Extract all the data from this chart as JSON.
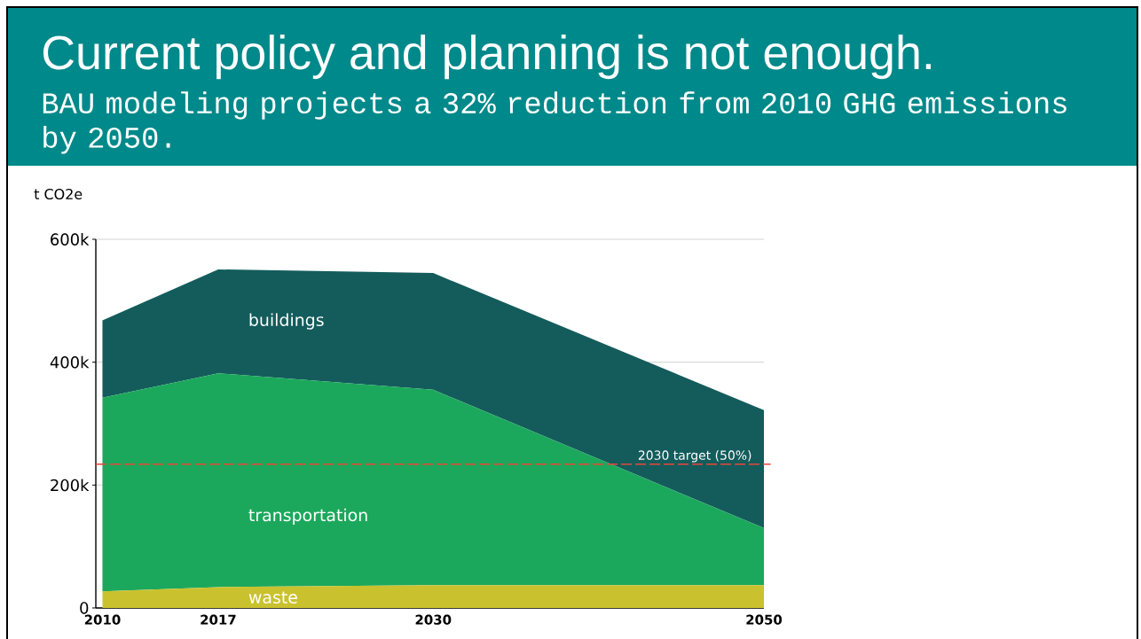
{
  "chart_data": {
    "type": "area",
    "stacked": true,
    "title": "Current policy and planning is not enough.",
    "subtitle": "BAU modeling projects a 32% reduction from 2010 GHG emissions by 2050.",
    "ylabel": "t CO2e",
    "x": [
      2010,
      2017,
      2030,
      2050
    ],
    "series": [
      {
        "name": "waste",
        "color": "#c9c22e",
        "values": [
          27000,
          34000,
          37000,
          37000
        ]
      },
      {
        "name": "transportation",
        "color": "#1ca85c",
        "values": [
          315000,
          348000,
          318000,
          93000
        ]
      },
      {
        "name": "buildings",
        "color": "#145c5c",
        "values": [
          126000,
          169000,
          190000,
          192000
        ]
      }
    ],
    "xlim": [
      2009.6,
      2050
    ],
    "xticks": [
      2010,
      2017,
      2030,
      2050
    ],
    "ylim": [
      0,
      600000
    ],
    "yticks": [
      {
        "value": 0,
        "label": "0"
      },
      {
        "value": 200000,
        "label": "200k"
      },
      {
        "value": 400000,
        "label": "400k"
      },
      {
        "value": 600000,
        "label": "600k"
      }
    ],
    "grid": "y",
    "legend": false,
    "ref_lines": [
      {
        "axis": "y",
        "value": 234000,
        "label": "2030 target (50%)",
        "color": "#e8463a",
        "line_style": "dashed"
      }
    ]
  }
}
